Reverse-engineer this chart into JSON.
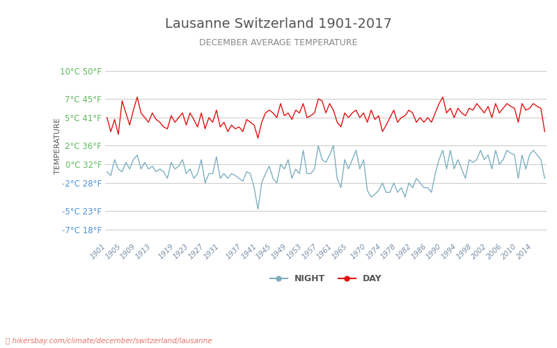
{
  "title": "Lausanne Switzerland 1901-2017",
  "subtitle": "DECEMBER AVERAGE TEMPERATURE",
  "ylabel": "TEMPERATURE",
  "xlabel_url": "hikersbay.com/climate/december/switzerland/lausanne",
  "years": [
    1901,
    1902,
    1903,
    1904,
    1905,
    1906,
    1907,
    1908,
    1909,
    1910,
    1911,
    1912,
    1913,
    1914,
    1915,
    1916,
    1917,
    1918,
    1919,
    1920,
    1921,
    1922,
    1923,
    1924,
    1925,
    1926,
    1927,
    1928,
    1929,
    1930,
    1931,
    1932,
    1933,
    1934,
    1935,
    1936,
    1937,
    1938,
    1939,
    1940,
    1941,
    1942,
    1943,
    1944,
    1945,
    1946,
    1947,
    1948,
    1949,
    1950,
    1951,
    1952,
    1953,
    1954,
    1955,
    1956,
    1957,
    1958,
    1959,
    1960,
    1961,
    1962,
    1963,
    1964,
    1965,
    1966,
    1967,
    1968,
    1969,
    1970,
    1971,
    1972,
    1973,
    1974,
    1975,
    1976,
    1977,
    1978,
    1979,
    1980,
    1981,
    1982,
    1983,
    1984,
    1985,
    1986,
    1987,
    1988,
    1989,
    1990,
    1991,
    1992,
    1993,
    1994,
    1995,
    1996,
    1997,
    1998,
    1999,
    2000,
    2001,
    2002,
    2003,
    2004,
    2005,
    2006,
    2007,
    2008,
    2009,
    2010,
    2011,
    2012,
    2013,
    2014,
    2015,
    2016,
    2017
  ],
  "day_temps": [
    5.0,
    3.5,
    4.8,
    3.2,
    6.8,
    5.5,
    4.2,
    5.8,
    7.2,
    5.5,
    5.0,
    4.5,
    5.5,
    4.8,
    4.5,
    4.0,
    3.8,
    5.2,
    4.5,
    5.0,
    5.5,
    4.2,
    5.5,
    4.8,
    4.0,
    5.5,
    3.8,
    5.0,
    4.5,
    5.8,
    4.0,
    4.5,
    3.5,
    4.2,
    3.8,
    4.0,
    3.5,
    4.8,
    4.5,
    4.2,
    2.8,
    4.5,
    5.5,
    5.8,
    5.5,
    5.0,
    6.5,
    5.2,
    5.5,
    4.8,
    5.8,
    5.5,
    6.5,
    5.0,
    5.2,
    5.5,
    7.0,
    6.8,
    5.5,
    6.5,
    5.8,
    4.5,
    4.0,
    5.5,
    5.0,
    5.5,
    5.8,
    5.0,
    5.5,
    4.5,
    5.8,
    4.8,
    5.2,
    3.5,
    4.2,
    5.0,
    5.8,
    4.5,
    5.0,
    5.2,
    5.8,
    5.5,
    4.5,
    5.0,
    4.5,
    5.0,
    4.5,
    5.5,
    6.5,
    7.2,
    5.5,
    6.0,
    5.0,
    6.0,
    5.5,
    5.2,
    6.0,
    5.8,
    6.5,
    6.0,
    5.5,
    6.2,
    5.0,
    6.5,
    5.5,
    6.0,
    6.5,
    6.2,
    6.0,
    4.5,
    6.5,
    5.8,
    6.0,
    6.5,
    6.2,
    6.0,
    3.5
  ],
  "night_temps": [
    -0.8,
    -1.2,
    0.5,
    -0.5,
    -0.8,
    0.2,
    -0.5,
    0.5,
    1.0,
    -0.5,
    0.2,
    -0.5,
    -0.2,
    -0.8,
    -0.5,
    -0.8,
    -1.5,
    0.2,
    -0.5,
    -0.2,
    0.5,
    -1.0,
    -0.5,
    -1.5,
    -1.0,
    0.5,
    -2.0,
    -1.0,
    -1.0,
    0.8,
    -1.5,
    -1.0,
    -1.5,
    -1.0,
    -1.2,
    -1.5,
    -1.8,
    -0.8,
    -1.0,
    -2.5,
    -4.8,
    -2.0,
    -1.0,
    -0.2,
    -1.5,
    -2.0,
    0.0,
    -0.5,
    0.5,
    -1.5,
    -0.5,
    -1.0,
    1.5,
    -1.0,
    -1.0,
    -0.5,
    2.0,
    0.5,
    0.2,
    1.0,
    2.0,
    -1.5,
    -2.5,
    0.5,
    -0.5,
    0.5,
    1.5,
    -0.5,
    0.5,
    -2.8,
    -3.5,
    -3.2,
    -2.8,
    -2.0,
    -3.0,
    -3.0,
    -2.0,
    -3.0,
    -2.5,
    -3.5,
    -2.0,
    -2.5,
    -1.5,
    -2.0,
    -2.5,
    -2.5,
    -3.0,
    -1.0,
    0.5,
    1.5,
    -0.5,
    1.5,
    -0.5,
    0.5,
    -0.5,
    -1.5,
    0.5,
    0.2,
    0.5,
    1.5,
    0.5,
    1.0,
    -0.5,
    1.5,
    0.0,
    0.5,
    1.5,
    1.2,
    1.0,
    -1.5,
    1.0,
    -0.5,
    1.0,
    1.5,
    1.0,
    0.5,
    -1.5
  ],
  "day_color": "#e01010",
  "night_color": "#7dafc0",
  "background_color": "#ffffff",
  "grid_color": "#cccccc",
  "title_color": "#555555",
  "subtitle_color": "#888888",
  "ylabel_color": "#555555",
  "tick_label_color_green": "#5cb85c",
  "tick_label_color_blue": "#4a90d9",
  "celsius_ticks": [
    -7,
    -5,
    -2,
    0,
    2,
    5,
    7,
    10
  ],
  "fahrenheit_ticks": [
    18,
    23,
    28,
    32,
    36,
    41,
    45,
    50
  ],
  "y_min": -8,
  "y_max": 12,
  "legend_night_label": "NIGHT",
  "legend_day_label": "DAY",
  "url_text": "⌕ hikersbay.com/climate/december/switzerland/lausanne",
  "x_tick_years": [
    1901,
    1905,
    1909,
    1913,
    1919,
    1923,
    1927,
    1931,
    1937,
    1941,
    1945,
    1949,
    1953,
    1957,
    1961,
    1965,
    1970,
    1974,
    1978,
    1982,
    1986,
    1990,
    1994,
    1998,
    2002,
    2006,
    2010,
    2014
  ]
}
